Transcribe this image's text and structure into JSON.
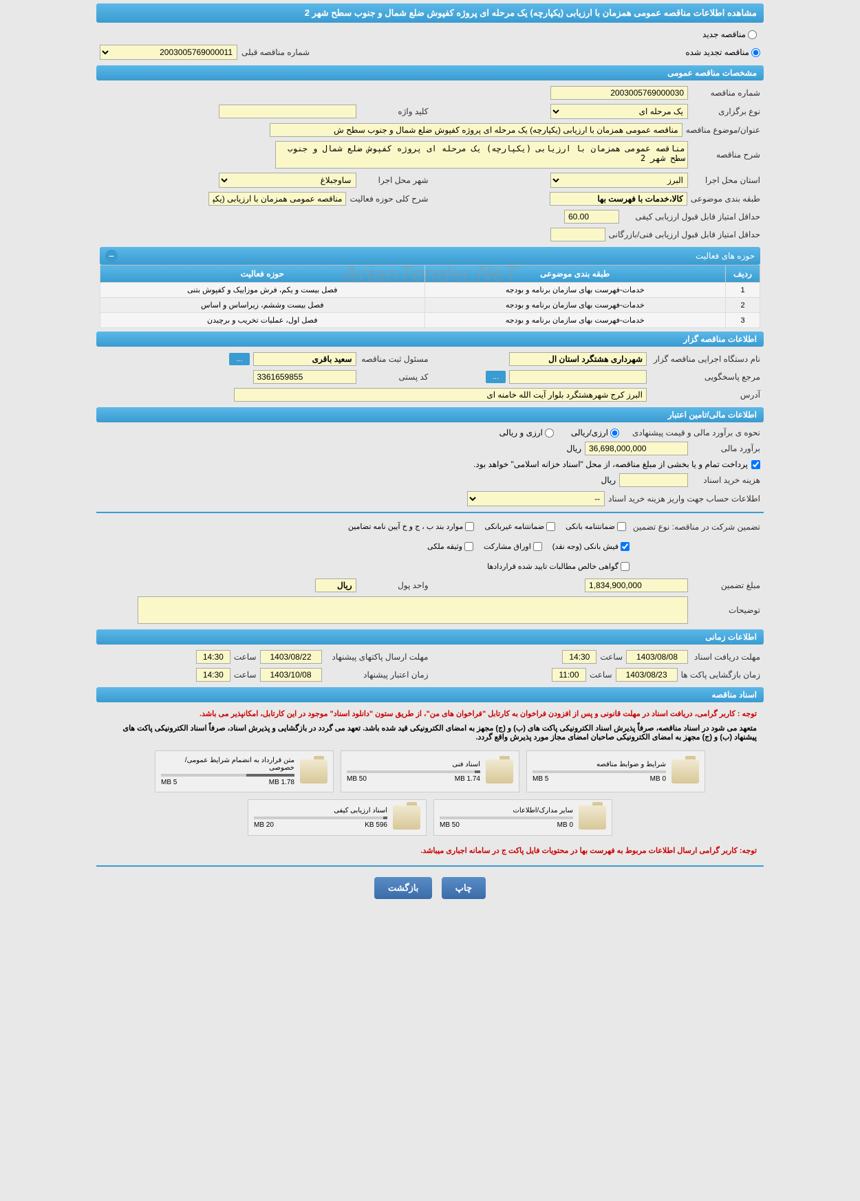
{
  "page": {
    "title": "مشاهده اطلاعات مناقصه عمومی همزمان با ارزیابی (یکپارچه) یک مرحله ای پروژه کفپوش ضلع شمال و جنوب سطح شهر 2",
    "watermark": "ArianTender.NeT"
  },
  "tender_status": {
    "new_label": "مناقصه جدید",
    "renewed_label": "مناقصه تجدید شده",
    "prev_number_label": "شماره مناقصه قبلی",
    "prev_number": "2003005769000011"
  },
  "sections": {
    "general": "مشخصات مناقصه عمومی",
    "activity_areas": "حوزه های فعالیت",
    "tenderer": "اطلاعات مناقصه گزار",
    "financial": "اطلاعات مالی/تامین اعتبار",
    "time": "اطلاعات زمانی",
    "documents": "اسناد مناقصه"
  },
  "general": {
    "tender_number_label": "شماره مناقصه",
    "tender_number": "2003005769000030",
    "type_label": "نوع برگزاری",
    "type": "یک مرحله ای",
    "keyword_label": "کلید واژه",
    "keyword": "",
    "subject_label": "عنوان/موضوع مناقصه",
    "subject": "مناقصه عمومی همزمان با ارزیابی (یکپارچه) یک مرحله ای پروژه کفپوش ضلع شمال و جنوب سطح ش",
    "description_label": "شرح مناقصه",
    "description": "مناقصه عمومی همزمان با ارزیابی (یکپارچه) یک مرحله ای پروژه کفپوش ضلع شمال و جنوب سطح شهر 2",
    "province_label": "استان محل اجرا",
    "province": "البرز",
    "city_label": "شهر محل اجرا",
    "city": "ساوجبلاغ",
    "category_label": "طبقه بندی موضوعی",
    "category": "کالا،خدمات با فهرست بها",
    "activity_desc_label": "شرح کلی حوزه فعالیت",
    "activity_desc": "مناقصه عمومی همزمان با ارزیابی (یکپارچه) یک مرحله",
    "min_quality_score_label": "حداقل امتیاز قابل قبول ارزیابی کیفی",
    "min_quality_score": "60.00",
    "min_tech_score_label": "حداقل امتیاز قابل قبول ارزیابی فنی/بازرگانی",
    "min_tech_score": ""
  },
  "activity_table": {
    "col_row": "ردیف",
    "col_category": "طبقه بندی موضوعی",
    "col_activity": "حوزه فعالیت",
    "rows": [
      {
        "num": "1",
        "category": "خدمات-فهرست بهای سازمان برنامه و بودجه",
        "activity": "فصل بیست و یکم، فرش موزاییک و کفپوش بتنی"
      },
      {
        "num": "2",
        "category": "خدمات-فهرست بهای سازمان برنامه و بودجه",
        "activity": "فصل بیست وششم، زیراساس و اساس"
      },
      {
        "num": "3",
        "category": "خدمات-فهرست بهای سازمان برنامه و بودجه",
        "activity": "فصل اول، عملیات تخریب و برچیدن"
      }
    ]
  },
  "tenderer": {
    "org_name_label": "نام دستگاه اجرایی مناقصه گزار",
    "org_name": "شهرداری هشتگرد استان ال",
    "registrar_label": "مسئول ثبت مناقصه",
    "registrar": "سعید باقری",
    "contact_label": "مرجع پاسخگویی",
    "contact": "",
    "postal_label": "کد پستی",
    "postal": "3361659855",
    "address_label": "آدرس",
    "address": "البرز کرج شهرهشتگرد بلوار آیت الله خامنه ای"
  },
  "financial": {
    "price_method_label": "نحوه ی برآورد مالی و قیمت پیشنهادی",
    "rial_option": "ارزی/ریالی",
    "currency_option": "ارزی و ریالی",
    "estimate_label": "برآورد مالی",
    "estimate": "36,698,000,000",
    "estimate_unit": "ریال",
    "payment_note": "پرداخت تمام و یا بخشی از مبلغ مناقصه، از محل \"اسناد خزانه اسلامی\" خواهد بود.",
    "doc_cost_label": "هزینه خرید اسناد",
    "doc_cost": "",
    "doc_cost_unit": "ریال",
    "account_info_label": "اطلاعات حساب جهت واریز هزینه خرید اسناد",
    "account_info": "--",
    "guarantee_type_label": "تضمین شرکت در مناقصه:   نوع تضمین",
    "guarantee_options": {
      "bank_guarantee": "ضمانتنامه بانکی",
      "nonbank_guarantee": "ضمانتنامه غیربانکی",
      "guarantee_clause": "موارد بند ب ، ج و خ آیین نامه تضامین",
      "bank_receipt": "فیش بانکی (وجه نقد)",
      "participation_bonds": "اوراق مشارکت",
      "property_deed": "وثیقه ملکی",
      "net_claims": "گواهی خالص مطالبات تایید شده قراردادها"
    },
    "guarantee_amount_label": "مبلغ تضمین",
    "guarantee_amount": "1,834,900,000",
    "currency_unit_label": "واحد پول",
    "currency_unit": "ریال",
    "notes_label": "توضیحات",
    "notes": ""
  },
  "time": {
    "doc_deadline_label": "مهلت دریافت اسناد",
    "doc_deadline_date": "1403/08/08",
    "doc_deadline_hour_label": "ساعت",
    "doc_deadline_hour": "14:30",
    "envelope_deadline_label": "مهلت ارسال پاکتهای پیشنهاد",
    "envelope_deadline_date": "1403/08/22",
    "envelope_deadline_hour_label": "ساعت",
    "envelope_deadline_hour": "14:30",
    "opening_time_label": "زمان بازگشایی پاکت ها",
    "opening_time_date": "1403/08/23",
    "opening_time_hour_label": "ساعت",
    "opening_time_hour": "11:00",
    "validity_label": "زمان اعتبار پیشنهاد",
    "validity_date": "1403/10/08",
    "validity_hour_label": "ساعت",
    "validity_hour": "14:30"
  },
  "documents": {
    "note1": "توجه : کاربر گرامی، دریافت اسناد در مهلت قانونی و پس از افزودن فراخوان به کارتابل \"فراخوان های من\"، از طریق ستون \"دانلود اسناد\" موجود در این کارتابل، امکانپذیر می باشد.",
    "note2": "متعهد می شود در اسناد مناقصه، صرفاً پذیرش اسناد الکترونیکی پاکت های (ب) و (ج) مجهز به امضای الکترونیکی قید شده باشد. تعهد می گردد در بازگشایی و پذیرش اسناد، صرفاً اسناد الکترونیکی پاکت های پیشنهاد (ب) و (ج) مجهز به امضای الکترونیکی صاحبان امضای مجاز مورد پذیرش واقع گردد.",
    "files": [
      {
        "name": "شرایط و ضوابط مناقصه",
        "used": "0 MB",
        "total": "5 MB",
        "fill": 0
      },
      {
        "name": "اسناد فنی",
        "used": "1.74 MB",
        "total": "50 MB",
        "fill": 4
      },
      {
        "name": "متن قرارداد به انضمام شرایط عمومی/خصوصی",
        "used": "1.78 MB",
        "total": "5 MB",
        "fill": 36
      },
      {
        "name": "سایر مدارک/اطلاعات",
        "used": "0 MB",
        "total": "50 MB",
        "fill": 0
      },
      {
        "name": "اسناد ارزیابی کیفی",
        "used": "596 KB",
        "total": "20 MB",
        "fill": 3
      }
    ],
    "note3": "توجه: کاربر گرامی ارسال اطلاعات مربوط به فهرست بها در محتویات فایل پاکت ج در سامانه اجباری میباشد."
  },
  "buttons": {
    "print": "چاپ",
    "back": "بازگشت",
    "more": "..."
  }
}
